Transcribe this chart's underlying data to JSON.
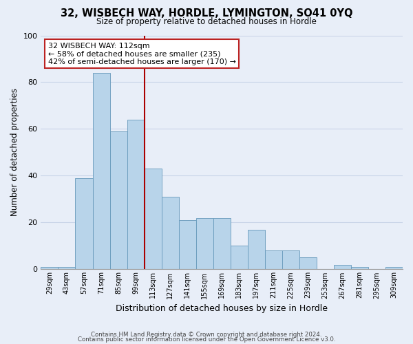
{
  "title": "32, WISBECH WAY, HORDLE, LYMINGTON, SO41 0YQ",
  "subtitle": "Size of property relative to detached houses in Hordle",
  "xlabel": "Distribution of detached houses by size in Hordle",
  "ylabel": "Number of detached properties",
  "bar_labels": [
    "29sqm",
    "43sqm",
    "57sqm",
    "71sqm",
    "85sqm",
    "99sqm",
    "113sqm",
    "127sqm",
    "141sqm",
    "155sqm",
    "169sqm",
    "183sqm",
    "197sqm",
    "211sqm",
    "225sqm",
    "239sqm",
    "253sqm",
    "267sqm",
    "281sqm",
    "295sqm",
    "309sqm"
  ],
  "bar_values": [
    1,
    1,
    39,
    84,
    59,
    64,
    43,
    31,
    21,
    22,
    22,
    10,
    17,
    8,
    8,
    5,
    0,
    2,
    1,
    0,
    1
  ],
  "bar_color": "#b8d4ea",
  "bar_edge_color": "#6699bb",
  "vline_color": "#aa0000",
  "ylim": [
    0,
    100
  ],
  "yticks": [
    0,
    20,
    40,
    60,
    80,
    100
  ],
  "annotation_title": "32 WISBECH WAY: 112sqm",
  "annotation_line1": "← 58% of detached houses are smaller (235)",
  "annotation_line2": "42% of semi-detached houses are larger (170) →",
  "annotation_box_color": "#ffffff",
  "annotation_box_edge": "#bb2222",
  "footer_line1": "Contains HM Land Registry data © Crown copyright and database right 2024.",
  "footer_line2": "Contains public sector information licensed under the Open Government Licence v3.0.",
  "background_color": "#e8eef8",
  "grid_color": "#c8d4e8"
}
